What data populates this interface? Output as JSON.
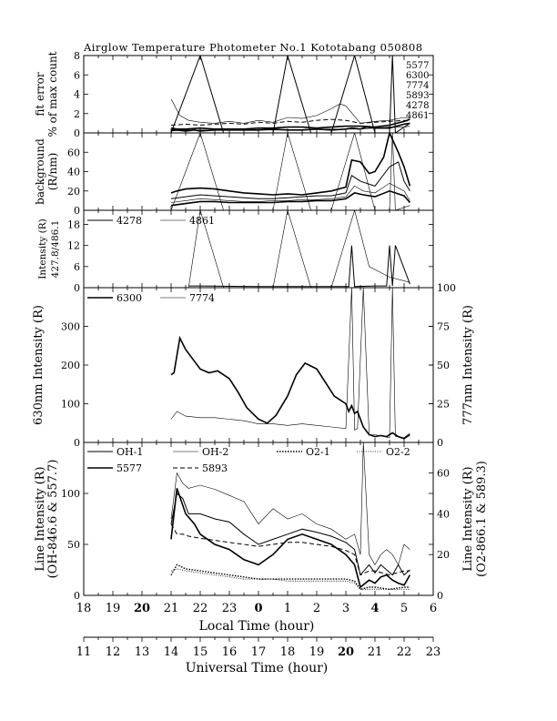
{
  "title": "Airglow Temperature Photometer No.1  Kototabang 050808",
  "local_time_axis": {
    "label": "Local Time (hour)",
    "ticks": [
      "18",
      "19",
      "20",
      "21",
      "22",
      "23",
      "0",
      "1",
      "2",
      "3",
      "4",
      "5",
      "6"
    ]
  },
  "universal_time_axis": {
    "label": "Universal Time (hour)",
    "ticks": [
      "11",
      "12",
      "13",
      "14",
      "15",
      "16",
      "17",
      "18",
      "19",
      "20",
      "21",
      "22",
      "23"
    ]
  },
  "chart_data": [
    {
      "type": "line",
      "panel": "fit-error",
      "ylabel": [
        "fit error",
        "% of max count"
      ],
      "ylim": [
        0,
        8
      ],
      "yticks": [
        "0",
        "2",
        "4",
        "6",
        "8"
      ],
      "x_range_local_hours": [
        18,
        30
      ],
      "legend": [
        "5577",
        "6300",
        "7774",
        "5893",
        "4278",
        "4861"
      ],
      "series": [
        {
          "name": "5577",
          "x": [
            21.0,
            21.2,
            21.5,
            21.8,
            22.0,
            22.5,
            23.0,
            23.5,
            24.0,
            24.5,
            25.0,
            25.5,
            26.0,
            26.5,
            27.0,
            27.2,
            27.5,
            27.7,
            28.0,
            28.5,
            29.0,
            29.2
          ],
          "y": [
            0.3,
            0.3,
            0.2,
            0.3,
            0.2,
            0.3,
            0.3,
            0.3,
            0.3,
            0.4,
            0.3,
            0.3,
            0.4,
            0.3,
            0.4,
            0.5,
            0.4,
            0.6,
            0.5,
            0.5,
            0.9,
            1.0
          ]
        },
        {
          "name": "6300",
          "x": [
            21.0,
            21.2,
            21.5,
            22.0,
            22.5,
            23.0,
            23.5,
            24.0,
            24.5,
            25.0,
            25.5,
            26.0,
            26.5,
            27.0,
            27.5,
            28.0,
            28.5,
            29.0,
            29.2
          ],
          "y": [
            0.5,
            0.4,
            0.4,
            0.5,
            0.4,
            0.4,
            0.4,
            0.5,
            0.5,
            0.6,
            0.6,
            0.5,
            0.6,
            0.7,
            0.7,
            0.6,
            0.8,
            1.2,
            1.4
          ]
        },
        {
          "name": "7774",
          "x": [
            21.0,
            21.3,
            21.6,
            22.0,
            22.5,
            23.0,
            23.5,
            24.0,
            24.5,
            25.0,
            25.5,
            26.0,
            26.5,
            26.8,
            27.0,
            27.5,
            28.0,
            28.5,
            29.0,
            29.2
          ],
          "y": [
            3.5,
            1.8,
            1.3,
            1.1,
            1.0,
            1.2,
            1.0,
            1.3,
            1.1,
            1.6,
            1.5,
            1.8,
            2.5,
            3.0,
            2.8,
            1.0,
            1.2,
            1.3,
            1.6,
            1.5
          ]
        },
        {
          "name": "5893",
          "x": [
            21.0,
            21.5,
            22.0,
            22.5,
            23.0,
            23.5,
            24.0,
            24.5,
            25.0,
            25.5,
            26.0,
            26.5,
            27.0,
            27.5,
            28.0,
            28.5,
            29.0,
            29.2
          ],
          "y": [
            0.8,
            0.9,
            0.8,
            0.9,
            1.0,
            0.9,
            1.1,
            1.0,
            1.2,
            1.1,
            1.3,
            1.4,
            1.3,
            1.0,
            1.1,
            1.2,
            1.3,
            1.2
          ]
        },
        {
          "name": "4278",
          "x": [
            21.0,
            22.0,
            22.8,
            23.5,
            24.5,
            25.0,
            25.8,
            26.5,
            27.3,
            28.0,
            28.5,
            28.6,
            28.7,
            29.2
          ],
          "y": [
            0,
            8,
            0,
            0,
            0,
            8,
            0,
            0,
            8,
            0,
            0,
            8,
            0,
            1
          ]
        },
        {
          "name": "4861",
          "x": [
            21.0,
            21.5,
            22.0,
            23.0,
            24.0,
            25.0,
            26.0,
            27.0,
            27.5,
            28.0,
            28.5,
            29.0,
            29.2
          ],
          "y": [
            0.2,
            0.3,
            0.3,
            0.3,
            0.3,
            0.3,
            0.4,
            0.4,
            0.4,
            0.5,
            0.6,
            0.6,
            0.7
          ]
        }
      ]
    },
    {
      "type": "line",
      "panel": "background",
      "ylabel": [
        "background",
        "(R/nm)"
      ],
      "ylim": [
        0,
        80
      ],
      "yticks": [
        "0",
        "20",
        "40",
        "60"
      ],
      "x_range_local_hours": [
        18,
        30
      ],
      "series": [
        {
          "x": [
            21.0,
            21.2,
            21.5,
            22.0,
            22.5,
            23.0,
            23.5,
            24.0,
            24.5,
            25.0,
            25.5,
            26.0,
            26.5,
            27.0,
            27.2,
            27.5,
            27.8,
            28.0,
            28.3,
            28.5,
            28.8,
            29.0,
            29.2
          ],
          "y": [
            18,
            20,
            22,
            23,
            22,
            20,
            18,
            17,
            16,
            17,
            16,
            18,
            20,
            24,
            52,
            50,
            38,
            40,
            55,
            80,
            60,
            45,
            25
          ]
        },
        {
          "x": [
            21.0,
            21.5,
            22.0,
            22.5,
            23.0,
            23.5,
            24.0,
            24.5,
            25.0,
            25.5,
            26.0,
            26.5,
            27.0,
            27.2,
            27.5,
            28.0,
            28.5,
            28.8,
            29.0,
            29.2
          ],
          "y": [
            12,
            14,
            16,
            15,
            14,
            13,
            12,
            12,
            13,
            14,
            15,
            15,
            18,
            36,
            30,
            25,
            45,
            50,
            30,
            20
          ]
        },
        {
          "x": [
            21.0,
            21.5,
            22.0,
            22.5,
            23.0,
            23.5,
            24.0,
            24.5,
            25.0,
            25.5,
            26.0,
            26.5,
            27.0,
            27.3,
            27.6,
            28.0,
            28.5,
            29.0,
            29.2
          ],
          "y": [
            8,
            10,
            12,
            11,
            10,
            9,
            9,
            10,
            10,
            11,
            11,
            12,
            14,
            25,
            20,
            18,
            28,
            20,
            10
          ]
        },
        {
          "x": [
            21.0,
            21.5,
            22.0,
            22.5,
            23.0,
            23.5,
            24.0,
            24.5,
            25.0,
            25.5,
            26.0,
            26.5,
            27.0,
            27.3,
            27.6,
            28.0,
            28.5,
            29.0,
            29.2
          ],
          "y": [
            5,
            7,
            9,
            9,
            8,
            8,
            8,
            8,
            9,
            9,
            10,
            10,
            12,
            18,
            16,
            14,
            20,
            15,
            8
          ]
        },
        {
          "x": [
            21.0,
            22.0,
            22.8,
            23.5,
            24.5,
            25.0,
            25.8,
            26.5,
            27.3,
            28.0,
            28.5,
            28.6,
            28.7,
            29.2
          ],
          "y": [
            0,
            80,
            0,
            0,
            0,
            80,
            0,
            0,
            80,
            0,
            0,
            80,
            0,
            5
          ]
        }
      ]
    },
    {
      "type": "line",
      "panel": "blue-lines",
      "ylabel": [
        "Intensity (R)",
        "427.8/486.1"
      ],
      "ylim": [
        0,
        22
      ],
      "yticks": [
        "0",
        "6",
        "12",
        "18"
      ],
      "x_range_local_hours": [
        18,
        30
      ],
      "series": [
        {
          "name": "4278",
          "x": [
            21.6,
            22.0,
            24.0,
            26.0,
            27.1,
            27.2,
            27.3,
            28.0,
            28.4,
            28.5,
            28.6,
            28.7,
            29.2
          ],
          "y": [
            0.5,
            0.5,
            0.3,
            0.3,
            0.3,
            12,
            0.3,
            0.5,
            0.5,
            12,
            0.5,
            12,
            1
          ]
        },
        {
          "name": "4861",
          "x": [
            21.6,
            22.0,
            22.8,
            23.5,
            24.5,
            25.0,
            25.8,
            26.5,
            27.3,
            27.8,
            28.5,
            29.2
          ],
          "y": [
            0,
            22,
            0,
            0,
            0,
            22,
            0,
            0,
            22,
            6,
            3,
            1.5
          ]
        }
      ]
    },
    {
      "type": "line",
      "panel": "red-line",
      "ylabel": "630nm Intensity (R)",
      "ylabel_right": "777nm Intensity (R)",
      "ylim": [
        0,
        400
      ],
      "yticks": [
        "0",
        "100",
        "200",
        "300"
      ],
      "ylim_right": [
        0,
        100
      ],
      "yticks_right": [
        "0",
        "25",
        "50",
        "75",
        "100"
      ],
      "x_range_local_hours": [
        18,
        30
      ],
      "series": [
        {
          "name": "6300",
          "x": [
            21.0,
            21.1,
            21.3,
            21.5,
            21.8,
            22.0,
            22.3,
            22.6,
            23.0,
            23.3,
            23.6,
            24.0,
            24.3,
            24.6,
            25.0,
            25.3,
            25.6,
            26.0,
            26.3,
            26.6,
            27.0,
            27.1,
            27.2,
            27.3,
            27.4,
            27.6,
            27.8,
            28.0,
            28.2,
            28.4,
            28.6,
            28.8,
            29.0,
            29.2
          ],
          "y": [
            175,
            180,
            270,
            240,
            210,
            190,
            180,
            185,
            165,
            130,
            90,
            60,
            50,
            70,
            120,
            175,
            205,
            190,
            155,
            120,
            100,
            80,
            95,
            75,
            80,
            40,
            20,
            15,
            18,
            15,
            25,
            15,
            10,
            20
          ]
        },
        {
          "name": "7774",
          "x": [
            21.0,
            21.2,
            21.5,
            22.0,
            22.5,
            23.0,
            23.5,
            24.0,
            24.5,
            25.0,
            25.5,
            26.0,
            26.5,
            27.0,
            27.2,
            27.3,
            27.4,
            27.6,
            27.8,
            28.0,
            28.5,
            28.6,
            28.7,
            29.0,
            29.2
          ],
          "y": [
            15,
            20,
            17,
            16,
            16,
            15,
            14,
            12,
            12,
            11,
            12,
            11,
            10,
            9,
            100,
            8,
            9,
            100,
            5,
            5,
            3,
            100,
            4,
            3,
            6
          ]
        }
      ]
    },
    {
      "type": "line",
      "panel": "oh-o2-lines",
      "ylabel": [
        "Line Intensity (R)",
        "(OH-846.6 & 557.7)"
      ],
      "ylabel_right": [
        "Line Intensity (R)",
        "(O2-866.1 & 589.3)"
      ],
      "ylim": [
        0,
        150
      ],
      "yticks": [
        "0",
        "50",
        "100"
      ],
      "ylim_right": [
        0,
        75
      ],
      "yticks_right": [
        "0",
        "20",
        "40",
        "60"
      ],
      "x_range_local_hours": [
        18,
        30
      ],
      "legend": [
        "OH-1",
        "OH-2",
        "5577",
        "5893",
        "O2-1",
        "O2-2"
      ],
      "series": [
        {
          "name": "OH-1",
          "x": [
            21.0,
            21.2,
            21.4,
            21.6,
            22.0,
            22.5,
            23.0,
            23.5,
            24.0,
            24.5,
            25.0,
            25.5,
            26.0,
            26.5,
            27.0,
            27.3,
            27.5,
            27.8,
            28.0,
            28.2,
            28.4,
            28.6,
            28.8,
            29.0,
            29.2
          ],
          "y": [
            70,
            100,
            95,
            80,
            80,
            75,
            72,
            60,
            50,
            55,
            60,
            65,
            62,
            58,
            52,
            45,
            20,
            30,
            22,
            30,
            25,
            20,
            30,
            20,
            25
          ]
        },
        {
          "name": "OH-2",
          "x": [
            21.0,
            21.2,
            21.4,
            21.6,
            22.0,
            22.5,
            23.0,
            23.5,
            24.0,
            24.5,
            25.0,
            25.5,
            26.0,
            26.5,
            27.0,
            27.3,
            27.5,
            27.6,
            27.8,
            28.0,
            28.2,
            28.4,
            28.6,
            28.8,
            29.0,
            29.2
          ],
          "y": [
            75,
            120,
            110,
            105,
            108,
            104,
            98,
            92,
            70,
            85,
            75,
            80,
            70,
            65,
            55,
            60,
            40,
            150,
            40,
            30,
            40,
            45,
            40,
            30,
            50,
            45
          ]
        },
        {
          "name": "5577",
          "x": [
            21.0,
            21.2,
            21.5,
            21.8,
            22.0,
            22.5,
            23.0,
            23.5,
            24.0,
            24.5,
            25.0,
            25.5,
            26.0,
            26.5,
            27.0,
            27.3,
            27.5,
            27.8,
            28.0,
            28.2,
            28.4,
            28.6,
            28.8,
            29.0,
            29.2
          ],
          "y": [
            55,
            105,
            80,
            70,
            60,
            50,
            45,
            35,
            30,
            40,
            55,
            60,
            55,
            50,
            40,
            30,
            8,
            15,
            12,
            18,
            20,
            15,
            12,
            10,
            20
          ]
        },
        {
          "name": "5893",
          "x": [
            21.0,
            21.2,
            21.4,
            21.6,
            22.0,
            22.5,
            23.0,
            23.5,
            24.0,
            24.5,
            25.0,
            25.5,
            26.0,
            26.5,
            27.0,
            27.3,
            27.5,
            27.8,
            28.0,
            28.5,
            29.0,
            29.2
          ],
          "y": [
            35,
            30,
            30,
            29,
            28,
            27,
            26,
            25,
            24,
            25,
            26,
            26,
            25,
            24,
            22,
            20,
            10,
            12,
            12,
            10,
            12,
            12
          ]
        },
        {
          "name": "O2-1",
          "x": [
            21.0,
            21.2,
            21.5,
            22.0,
            22.5,
            23.0,
            23.5,
            24.0,
            24.5,
            25.0,
            25.5,
            26.0,
            26.5,
            27.0,
            27.3,
            27.5,
            27.8,
            28.0,
            28.5,
            29.0,
            29.2
          ],
          "y": [
            10,
            15,
            13,
            12,
            11,
            10,
            9,
            8,
            8,
            8,
            8,
            8,
            8,
            8,
            7,
            3,
            4,
            4,
            3,
            4,
            4
          ]
        },
        {
          "name": "O2-2",
          "x": [
            21.0,
            21.2,
            21.5,
            22.0,
            22.5,
            23.0,
            23.5,
            24.0,
            24.5,
            25.0,
            25.5,
            26.0,
            26.5,
            27.0,
            27.3,
            27.5,
            27.8,
            28.0,
            28.5,
            29.0,
            29.2
          ],
          "y": [
            12,
            13,
            12,
            11,
            10,
            9,
            8,
            8,
            8,
            7,
            7,
            7,
            7,
            7,
            6,
            3,
            3,
            3,
            3,
            3,
            3
          ]
        }
      ]
    }
  ]
}
